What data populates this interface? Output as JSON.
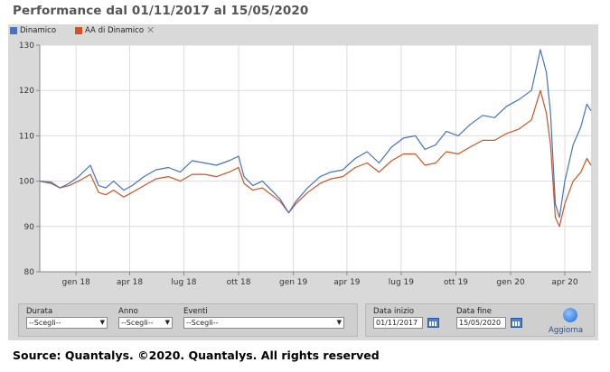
{
  "title": "Performance dal 01/11/2017 al 15/05/2020",
  "legend": [
    {
      "label": "Dinamico",
      "color": "#4472c4"
    },
    {
      "label": "AA di Dinamico",
      "color": "#d2521f",
      "close": "✕"
    }
  ],
  "chart_data": {
    "type": "line",
    "title": "Performance dal 01/11/2017 al 15/05/2020",
    "x_range": [
      "2017-11-01",
      "2020-05-15"
    ],
    "ylim": [
      80,
      130
    ],
    "y_ticks": [
      "80",
      "90",
      "100",
      "110",
      "120",
      "130"
    ],
    "x_ticks": [
      "gen 18",
      "apr 18",
      "lug 18",
      "ott 18",
      "gen 19",
      "apr 19",
      "lug 19",
      "ott 19",
      "gen 20",
      "apr 20"
    ],
    "x_tick_dates": [
      "2018-01-01",
      "2018-04-01",
      "2018-07-01",
      "2018-10-01",
      "2019-01-01",
      "2019-04-01",
      "2019-07-01",
      "2019-10-01",
      "2020-01-01",
      "2020-04-01"
    ],
    "grid": true,
    "legend_position": "top-left",
    "series": [
      {
        "name": "Dinamico",
        "color": "#4472c4",
        "points": [
          [
            "2017-11-01",
            100
          ],
          [
            "2017-11-20",
            99.5
          ],
          [
            "2017-12-05",
            98.5
          ],
          [
            "2017-12-20",
            99.5
          ],
          [
            "2018-01-05",
            101
          ],
          [
            "2018-01-25",
            103.5
          ],
          [
            "2018-02-08",
            99
          ],
          [
            "2018-02-20",
            98.5
          ],
          [
            "2018-03-05",
            100
          ],
          [
            "2018-03-22",
            98
          ],
          [
            "2018-04-05",
            99
          ],
          [
            "2018-04-25",
            101
          ],
          [
            "2018-05-15",
            102.5
          ],
          [
            "2018-06-05",
            103
          ],
          [
            "2018-06-25",
            102
          ],
          [
            "2018-07-15",
            104.5
          ],
          [
            "2018-08-05",
            104
          ],
          [
            "2018-08-25",
            103.5
          ],
          [
            "2018-09-15",
            104.5
          ],
          [
            "2018-10-01",
            105.5
          ],
          [
            "2018-10-10",
            101
          ],
          [
            "2018-10-25",
            99
          ],
          [
            "2018-11-10",
            100
          ],
          [
            "2018-11-25",
            98
          ],
          [
            "2018-12-10",
            96
          ],
          [
            "2018-12-24",
            93
          ],
          [
            "2019-01-05",
            95.5
          ],
          [
            "2019-01-25",
            98.5
          ],
          [
            "2019-02-15",
            101
          ],
          [
            "2019-03-05",
            102
          ],
          [
            "2019-03-25",
            102.5
          ],
          [
            "2019-04-15",
            105
          ],
          [
            "2019-05-05",
            106.5
          ],
          [
            "2019-05-25",
            104
          ],
          [
            "2019-06-15",
            107.5
          ],
          [
            "2019-07-05",
            109.5
          ],
          [
            "2019-07-25",
            110
          ],
          [
            "2019-08-10",
            107
          ],
          [
            "2019-08-28",
            108
          ],
          [
            "2019-09-15",
            111
          ],
          [
            "2019-10-05",
            110
          ],
          [
            "2019-10-25",
            112.5
          ],
          [
            "2019-11-15",
            114.5
          ],
          [
            "2019-12-05",
            114
          ],
          [
            "2019-12-25",
            116.5
          ],
          [
            "2020-01-15",
            118
          ],
          [
            "2020-02-05",
            120
          ],
          [
            "2020-02-20",
            129
          ],
          [
            "2020-03-01",
            124
          ],
          [
            "2020-03-08",
            115
          ],
          [
            "2020-03-16",
            95
          ],
          [
            "2020-03-23",
            92
          ],
          [
            "2020-04-01",
            100
          ],
          [
            "2020-04-15",
            108
          ],
          [
            "2020-04-28",
            112
          ],
          [
            "2020-05-08",
            117
          ],
          [
            "2020-05-15",
            115.5
          ]
        ]
      },
      {
        "name": "AA di Dinamico",
        "color": "#d2521f",
        "points": [
          [
            "2017-11-01",
            100
          ],
          [
            "2017-11-20",
            99.8
          ],
          [
            "2017-12-05",
            98.5
          ],
          [
            "2017-12-20",
            99
          ],
          [
            "2018-01-05",
            100
          ],
          [
            "2018-01-25",
            101.5
          ],
          [
            "2018-02-08",
            97.5
          ],
          [
            "2018-02-20",
            97
          ],
          [
            "2018-03-05",
            98
          ],
          [
            "2018-03-22",
            96.5
          ],
          [
            "2018-04-05",
            97.5
          ],
          [
            "2018-04-25",
            99
          ],
          [
            "2018-05-15",
            100.5
          ],
          [
            "2018-06-05",
            101
          ],
          [
            "2018-06-25",
            100
          ],
          [
            "2018-07-15",
            101.5
          ],
          [
            "2018-08-05",
            101.5
          ],
          [
            "2018-08-25",
            101
          ],
          [
            "2018-09-15",
            102
          ],
          [
            "2018-10-01",
            103
          ],
          [
            "2018-10-10",
            99.5
          ],
          [
            "2018-10-25",
            98
          ],
          [
            "2018-11-10",
            98.5
          ],
          [
            "2018-11-25",
            97
          ],
          [
            "2018-12-10",
            95.5
          ],
          [
            "2018-12-24",
            93
          ],
          [
            "2019-01-05",
            95
          ],
          [
            "2019-01-25",
            97.5
          ],
          [
            "2019-02-15",
            99.5
          ],
          [
            "2019-03-05",
            100.5
          ],
          [
            "2019-03-25",
            101
          ],
          [
            "2019-04-15",
            103
          ],
          [
            "2019-05-05",
            104
          ],
          [
            "2019-05-25",
            102
          ],
          [
            "2019-06-15",
            104.5
          ],
          [
            "2019-07-05",
            106
          ],
          [
            "2019-07-25",
            106
          ],
          [
            "2019-08-10",
            103.5
          ],
          [
            "2019-08-28",
            104
          ],
          [
            "2019-09-15",
            106.5
          ],
          [
            "2019-10-05",
            106
          ],
          [
            "2019-10-25",
            107.5
          ],
          [
            "2019-11-15",
            109
          ],
          [
            "2019-12-05",
            109
          ],
          [
            "2019-12-25",
            110.5
          ],
          [
            "2020-01-15",
            111.5
          ],
          [
            "2020-02-05",
            113.5
          ],
          [
            "2020-02-20",
            120
          ],
          [
            "2020-03-01",
            115
          ],
          [
            "2020-03-08",
            108
          ],
          [
            "2020-03-16",
            92
          ],
          [
            "2020-03-23",
            90
          ],
          [
            "2020-04-01",
            95
          ],
          [
            "2020-04-15",
            100
          ],
          [
            "2020-04-28",
            102
          ],
          [
            "2020-05-08",
            105
          ],
          [
            "2020-05-15",
            103.5
          ]
        ]
      }
    ]
  },
  "controls": {
    "durata_label": "Durata",
    "durata_value": "--Scegli--",
    "anno_label": "Anno",
    "anno_value": "--Scegli--",
    "eventi_label": "Eventi",
    "eventi_value": "--Scegli--",
    "arrow": "▼",
    "data_inizio_label": "Data inizio",
    "data_inizio_value": "01/11/2017",
    "data_fine_label": "Data fine",
    "data_fine_value": "15/05/2020",
    "aggiorna_label": "Aggiorna"
  },
  "source": "Source: Quantalys. ©2020. Quantalys. All rights reserved"
}
